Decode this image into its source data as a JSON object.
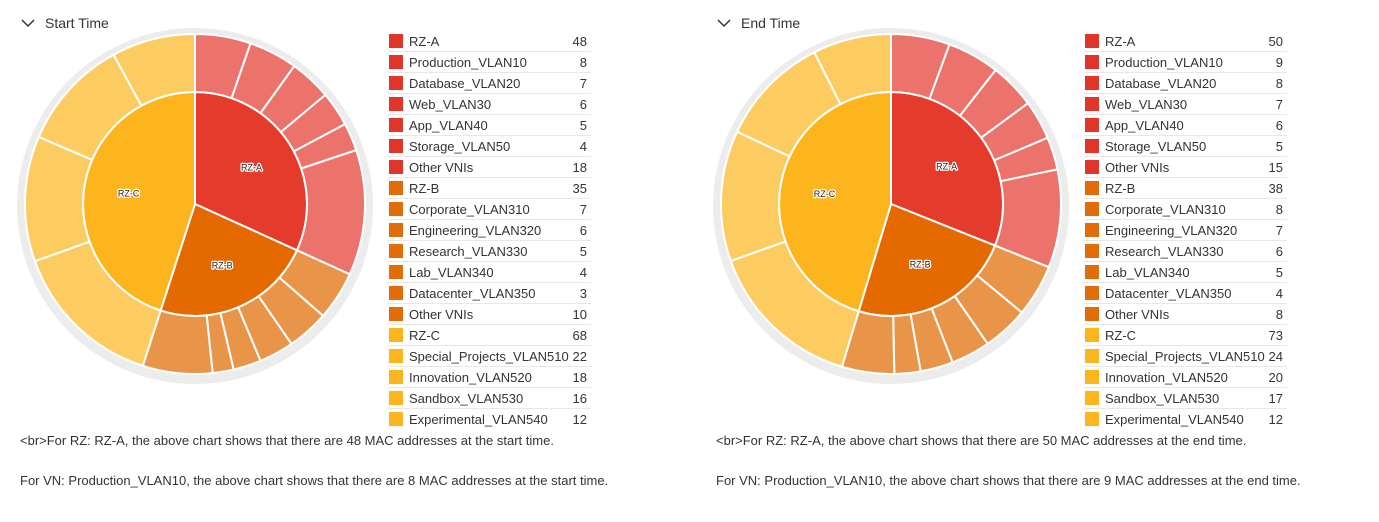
{
  "colors": {
    "RZ-A": {
      "inner": "#e53b2c",
      "outer": "#ec736b",
      "swatch": "#e0352b"
    },
    "RZ-B": {
      "inner": "#e46a00",
      "outer": "#e99549",
      "swatch": "#e06c0a"
    },
    "RZ-C": {
      "inner": "#fdb51e",
      "outer": "#fccc61",
      "swatch": "#fdb51e"
    }
  },
  "panels": [
    {
      "title": "Start Time",
      "note_1": "<br>For RZ: RZ-A, the above chart shows that there are 48 MAC addresses at the start time.",
      "note_2": "For VN: Production_VLAN10, the above chart shows that there are 8 MAC addresses at the start time."
    },
    {
      "title": "End Time",
      "note_1": "<br>For RZ: RZ-A, the above chart shows that there are 50 MAC addresses at the end time.",
      "note_2": "For VN: Production_VLAN10, the above chart shows that there are 9 MAC addresses at the end time."
    }
  ],
  "chart_data": [
    {
      "type": "sunburst",
      "title": "Start Time",
      "zones": [
        {
          "name": "RZ-A",
          "value": 48,
          "children": [
            {
              "name": "Production_VLAN10",
              "value": 8
            },
            {
              "name": "Database_VLAN20",
              "value": 7
            },
            {
              "name": "Web_VLAN30",
              "value": 6
            },
            {
              "name": "App_VLAN40",
              "value": 5
            },
            {
              "name": "Storage_VLAN50",
              "value": 4
            },
            {
              "name": "Other VNIs",
              "value": 18
            }
          ]
        },
        {
          "name": "RZ-B",
          "value": 35,
          "children": [
            {
              "name": "Corporate_VLAN310",
              "value": 7
            },
            {
              "name": "Engineering_VLAN320",
              "value": 6
            },
            {
              "name": "Research_VLAN330",
              "value": 5
            },
            {
              "name": "Lab_VLAN340",
              "value": 4
            },
            {
              "name": "Datacenter_VLAN350",
              "value": 3
            },
            {
              "name": "Other VNIs",
              "value": 10
            }
          ]
        },
        {
          "name": "RZ-C",
          "value": 68,
          "children": [
            {
              "name": "Special_Projects_VLAN510",
              "value": 22
            },
            {
              "name": "Innovation_VLAN520",
              "value": 18
            },
            {
              "name": "Sandbox_VLAN530",
              "value": 16
            },
            {
              "name": "Experimental_VLAN540",
              "value": 12
            }
          ]
        }
      ]
    },
    {
      "type": "sunburst",
      "title": "End Time",
      "zones": [
        {
          "name": "RZ-A",
          "value": 50,
          "children": [
            {
              "name": "Production_VLAN10",
              "value": 9
            },
            {
              "name": "Database_VLAN20",
              "value": 8
            },
            {
              "name": "Web_VLAN30",
              "value": 7
            },
            {
              "name": "App_VLAN40",
              "value": 6
            },
            {
              "name": "Storage_VLAN50",
              "value": 5
            },
            {
              "name": "Other VNIs",
              "value": 15
            }
          ]
        },
        {
          "name": "RZ-B",
          "value": 38,
          "children": [
            {
              "name": "Corporate_VLAN310",
              "value": 8
            },
            {
              "name": "Engineering_VLAN320",
              "value": 7
            },
            {
              "name": "Research_VLAN330",
              "value": 6
            },
            {
              "name": "Lab_VLAN340",
              "value": 5
            },
            {
              "name": "Datacenter_VLAN350",
              "value": 4
            },
            {
              "name": "Other VNIs",
              "value": 8
            }
          ]
        },
        {
          "name": "RZ-C",
          "value": 73,
          "children": [
            {
              "name": "Special_Projects_VLAN510",
              "value": 24
            },
            {
              "name": "Innovation_VLAN520",
              "value": 20
            },
            {
              "name": "Sandbox_VLAN530",
              "value": 17
            },
            {
              "name": "Experimental_VLAN540",
              "value": 12
            }
          ]
        }
      ]
    }
  ]
}
